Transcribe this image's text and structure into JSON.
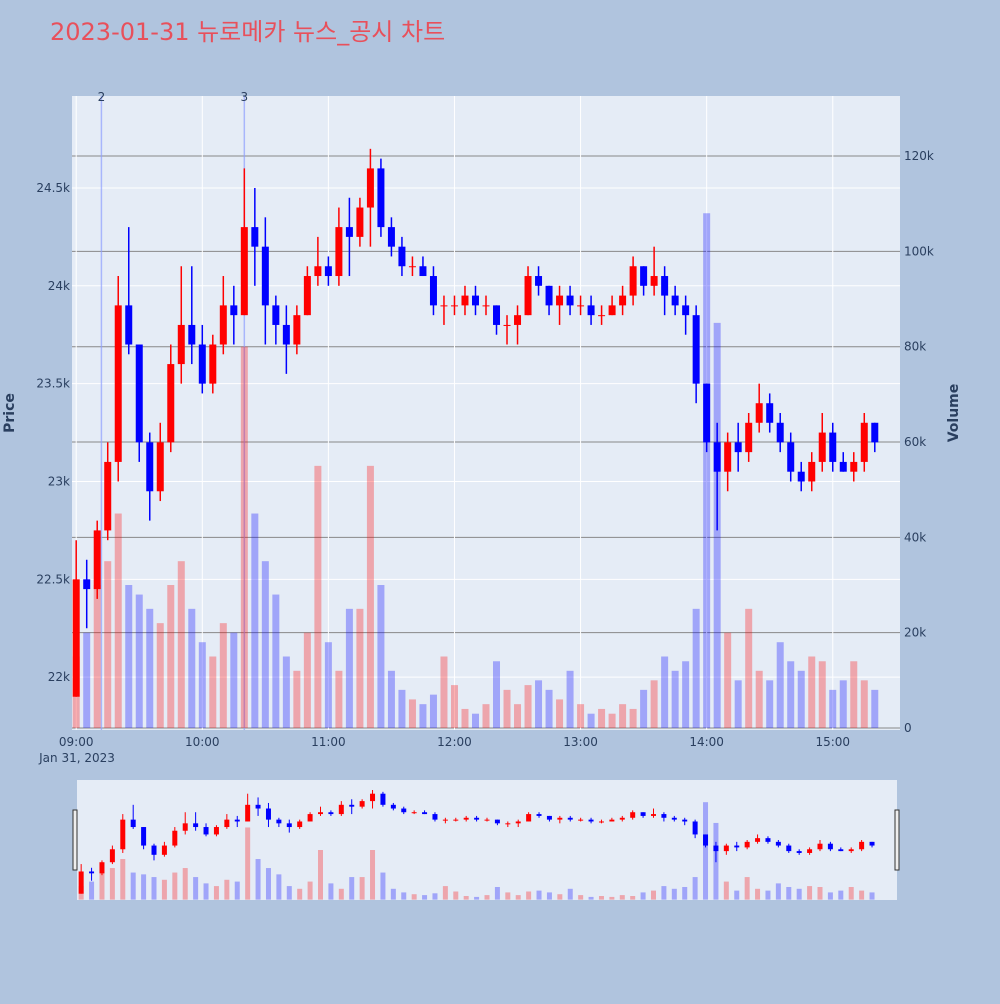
{
  "chart_data": {
    "type": "candlestick",
    "title": "2023-01-31 뉴로메카 뉴스_공시 차트",
    "y_title": "Price",
    "y2_title": "Volume",
    "x_date_label": "Jan 31, 2023",
    "increasing_color": "#ff0000",
    "decreasing_color": "#0000ff",
    "x": [
      "09:00",
      "09:05",
      "09:10",
      "09:15",
      "09:20",
      "09:25",
      "09:30",
      "09:35",
      "09:40",
      "09:45",
      "09:50",
      "09:55",
      "10:00",
      "10:05",
      "10:10",
      "10:15",
      "10:20",
      "10:25",
      "10:30",
      "10:35",
      "10:40",
      "10:45",
      "10:50",
      "10:55",
      "11:00",
      "11:05",
      "11:10",
      "11:15",
      "11:20",
      "11:25",
      "11:30",
      "11:35",
      "11:40",
      "11:45",
      "11:50",
      "11:55",
      "12:00",
      "12:05",
      "12:10",
      "12:15",
      "12:20",
      "12:25",
      "12:30",
      "12:35",
      "12:40",
      "12:45",
      "12:50",
      "12:55",
      "13:00",
      "13:05",
      "13:10",
      "13:15",
      "13:20",
      "13:25",
      "13:30",
      "13:35",
      "13:40",
      "13:45",
      "13:50",
      "13:55",
      "14:00",
      "14:05",
      "14:10",
      "14:15",
      "14:20",
      "14:25",
      "14:30",
      "14:35",
      "14:40",
      "14:45",
      "14:50",
      "14:55",
      "15:00",
      "15:05",
      "15:10",
      "15:15",
      "15:20"
    ],
    "ohlc": [
      [
        21900,
        22700,
        21900,
        22500
      ],
      [
        22500,
        22600,
        22250,
        22450
      ],
      [
        22450,
        22800,
        22400,
        22750
      ],
      [
        22750,
        23200,
        22700,
        23100
      ],
      [
        23100,
        24050,
        23000,
        23900
      ],
      [
        23900,
        24300,
        23650,
        23700
      ],
      [
        23700,
        23700,
        23100,
        23200
      ],
      [
        23200,
        23250,
        22800,
        22950
      ],
      [
        22950,
        23300,
        22900,
        23200
      ],
      [
        23200,
        23700,
        23150,
        23600
      ],
      [
        23600,
        24100,
        23500,
        23800
      ],
      [
        23800,
        24100,
        23600,
        23700
      ],
      [
        23700,
        23800,
        23450,
        23500
      ],
      [
        23500,
        23750,
        23450,
        23700
      ],
      [
        23700,
        24050,
        23650,
        23900
      ],
      [
        23900,
        24000,
        23700,
        23850
      ],
      [
        23850,
        24600,
        23850,
        24300
      ],
      [
        24300,
        24500,
        24000,
        24200
      ],
      [
        24200,
        24350,
        23700,
        23900
      ],
      [
        23900,
        23950,
        23700,
        23800
      ],
      [
        23800,
        23900,
        23550,
        23700
      ],
      [
        23700,
        23900,
        23650,
        23850
      ],
      [
        23850,
        24100,
        23850,
        24050
      ],
      [
        24050,
        24250,
        24000,
        24100
      ],
      [
        24100,
        24150,
        24000,
        24050
      ],
      [
        24050,
        24400,
        24000,
        24300
      ],
      [
        24300,
        24450,
        24050,
        24250
      ],
      [
        24250,
        24450,
        24200,
        24400
      ],
      [
        24400,
        24700,
        24200,
        24600
      ],
      [
        24600,
        24650,
        24250,
        24300
      ],
      [
        24300,
        24350,
        24150,
        24200
      ],
      [
        24200,
        24250,
        24050,
        24100
      ],
      [
        24100,
        24150,
        24050,
        24100
      ],
      [
        24100,
        24150,
        24050,
        24050
      ],
      [
        24050,
        24100,
        23850,
        23900
      ],
      [
        23900,
        23950,
        23800,
        23900
      ],
      [
        23900,
        23950,
        23850,
        23900
      ],
      [
        23900,
        24000,
        23850,
        23950
      ],
      [
        23950,
        24000,
        23850,
        23900
      ],
      [
        23900,
        23950,
        23850,
        23900
      ],
      [
        23900,
        23900,
        23750,
        23800
      ],
      [
        23800,
        23850,
        23700,
        23800
      ],
      [
        23800,
        23900,
        23700,
        23850
      ],
      [
        23850,
        24100,
        23850,
        24050
      ],
      [
        24050,
        24100,
        23950,
        24000
      ],
      [
        24000,
        24000,
        23850,
        23900
      ],
      [
        23900,
        24000,
        23800,
        23950
      ],
      [
        23950,
        24000,
        23850,
        23900
      ],
      [
        23900,
        23950,
        23850,
        23900
      ],
      [
        23900,
        23950,
        23800,
        23850
      ],
      [
        23850,
        23900,
        23800,
        23850
      ],
      [
        23850,
        23950,
        23850,
        23900
      ],
      [
        23900,
        24000,
        23850,
        23950
      ],
      [
        23950,
        24150,
        23900,
        24100
      ],
      [
        24100,
        24100,
        23950,
        24000
      ],
      [
        24000,
        24200,
        23950,
        24050
      ],
      [
        24050,
        24100,
        23850,
        23950
      ],
      [
        23950,
        24000,
        23850,
        23900
      ],
      [
        23900,
        23950,
        23750,
        23850
      ],
      [
        23850,
        23900,
        23400,
        23500
      ],
      [
        23500,
        23500,
        23150,
        23200
      ],
      [
        23200,
        23300,
        22750,
        23050
      ],
      [
        23050,
        23250,
        22950,
        23200
      ],
      [
        23200,
        23300,
        23050,
        23150
      ],
      [
        23150,
        23350,
        23100,
        23300
      ],
      [
        23300,
        23500,
        23250,
        23400
      ],
      [
        23400,
        23450,
        23250,
        23300
      ],
      [
        23300,
        23350,
        23150,
        23200
      ],
      [
        23200,
        23250,
        23000,
        23050
      ],
      [
        23050,
        23100,
        22950,
        23000
      ],
      [
        23000,
        23150,
        22950,
        23100
      ],
      [
        23100,
        23350,
        23050,
        23250
      ],
      [
        23250,
        23300,
        23050,
        23100
      ],
      [
        23100,
        23150,
        23050,
        23050
      ],
      [
        23050,
        23150,
        23000,
        23100
      ],
      [
        23100,
        23350,
        23050,
        23300
      ],
      [
        23300,
        23300,
        23150,
        23200
      ]
    ],
    "volume": [
      15000,
      20000,
      30000,
      35000,
      45000,
      30000,
      28000,
      25000,
      22000,
      30000,
      35000,
      25000,
      18000,
      15000,
      22000,
      20000,
      80000,
      45000,
      35000,
      28000,
      15000,
      12000,
      20000,
      55000,
      18000,
      12000,
      25000,
      25000,
      55000,
      30000,
      12000,
      8000,
      6000,
      5000,
      7000,
      15000,
      9000,
      4000,
      3000,
      5000,
      14000,
      8000,
      5000,
      9000,
      10000,
      8000,
      6000,
      12000,
      5000,
      3000,
      4000,
      3000,
      5000,
      4000,
      8000,
      10000,
      15000,
      12000,
      14000,
      25000,
      108000,
      85000,
      20000,
      10000,
      25000,
      12000,
      10000,
      18000,
      14000,
      12000,
      15000,
      14000,
      8000,
      10000,
      14000,
      10000,
      8000
    ],
    "annotations": [
      {
        "x": "09:12",
        "text": "2"
      },
      {
        "x": "10:20",
        "text": "3"
      }
    ],
    "xlim": [
      "08:58",
      "15:32"
    ],
    "xticks": [
      "09:00",
      "10:00",
      "11:00",
      "12:00",
      "13:00",
      "14:00",
      "15:00"
    ],
    "ylim": [
      21730,
      24970
    ],
    "yticks": [
      {
        "value": 22000,
        "label": "22k"
      },
      {
        "value": 22500,
        "label": "22.5k"
      },
      {
        "value": 23000,
        "label": "23k"
      },
      {
        "value": 23500,
        "label": "23.5k"
      },
      {
        "value": 24000,
        "label": "24k"
      },
      {
        "value": 24500,
        "label": "24.5k"
      }
    ],
    "y2lim": [
      -420,
      132600
    ],
    "y2ticks": [
      0,
      {
        "value": 20000,
        "label": "20k"
      },
      {
        "value": 40000,
        "label": "40k"
      },
      {
        "value": 60000,
        "label": "60k"
      },
      {
        "value": 80000,
        "label": "80k"
      },
      {
        "value": 100000,
        "label": "100k"
      },
      {
        "value": 120000,
        "label": "120k"
      }
    ],
    "range_slider": true
  }
}
